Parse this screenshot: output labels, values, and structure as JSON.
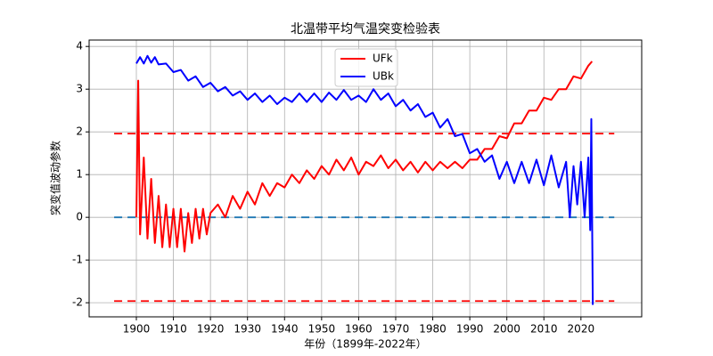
{
  "chart_data": {
    "type": "line",
    "title": "北温带平均气温突变检验表",
    "xlabel": "年份（1899年-2022年）",
    "ylabel": "突变值波动参数",
    "xlim": [
      1887.25,
      2036.4
    ],
    "xticks": [
      1900,
      1910,
      1920,
      1930,
      1940,
      1950,
      1960,
      1970,
      1980,
      1990,
      2000,
      2010,
      2020
    ],
    "ylim": [
      -2.33,
      4.15
    ],
    "yticks": [
      -2,
      -1,
      0,
      1,
      2,
      3,
      4
    ],
    "grid": true,
    "legend": "upper center",
    "reference_lines": [
      {
        "y": 1.96,
        "color": "#ff0000",
        "x": [
          1894,
          2029
        ]
      },
      {
        "y": 0,
        "color": "#1f77b4",
        "x": [
          1894,
          2029
        ]
      },
      {
        "y": -1.96,
        "color": "#ff0000",
        "x": [
          1894,
          2029
        ]
      }
    ],
    "series": [
      {
        "name": "UFk",
        "color": "#ff0000",
        "x": [
          1900,
          1900.5,
          1901,
          1902,
          1903,
          1904,
          1905,
          1906,
          1907,
          1908,
          1909,
          1910,
          1911,
          1912,
          1913,
          1914,
          1915,
          1916,
          1917,
          1918,
          1919,
          1920,
          1922,
          1924,
          1926,
          1928,
          1930,
          1932,
          1934,
          1936,
          1938,
          1940,
          1942,
          1944,
          1946,
          1948,
          1950,
          1952,
          1954,
          1956,
          1958,
          1960,
          1962,
          1964,
          1966,
          1968,
          1970,
          1972,
          1974,
          1976,
          1978,
          1980,
          1982,
          1984,
          1986,
          1988,
          1990,
          1992,
          1994,
          1996,
          1998,
          2000,
          2002,
          2004,
          2006,
          2008,
          2010,
          2012,
          2014,
          2016,
          2018,
          2020,
          2022,
          2023
        ],
        "values": [
          0,
          3.2,
          -0.4,
          1.4,
          -0.5,
          0.9,
          -0.6,
          0.5,
          -0.7,
          0.3,
          -0.7,
          0.2,
          -0.7,
          0.2,
          -0.8,
          0.1,
          -0.6,
          0.2,
          -0.5,
          0.2,
          -0.4,
          0.1,
          0.3,
          0.0,
          0.5,
          0.2,
          0.6,
          0.3,
          0.8,
          0.5,
          0.8,
          0.7,
          1.0,
          0.8,
          1.1,
          0.9,
          1.2,
          1.0,
          1.35,
          1.1,
          1.4,
          1.0,
          1.3,
          1.2,
          1.45,
          1.15,
          1.35,
          1.1,
          1.3,
          1.05,
          1.3,
          1.1,
          1.3,
          1.15,
          1.3,
          1.15,
          1.35,
          1.35,
          1.6,
          1.6,
          1.9,
          1.85,
          2.2,
          2.2,
          2.5,
          2.5,
          2.8,
          2.75,
          3.0,
          3.0,
          3.3,
          3.25,
          3.55,
          3.65
        ]
      },
      {
        "name": "UBk",
        "color": "#0000ff",
        "x": [
          1900,
          1901,
          1902,
          1903,
          1904,
          1905,
          1906,
          1908,
          1910,
          1912,
          1914,
          1916,
          1918,
          1920,
          1922,
          1924,
          1926,
          1928,
          1930,
          1932,
          1934,
          1936,
          1938,
          1940,
          1942,
          1944,
          1946,
          1948,
          1950,
          1952,
          1954,
          1956,
          1958,
          1960,
          1962,
          1964,
          1966,
          1968,
          1970,
          1972,
          1974,
          1976,
          1978,
          1980,
          1982,
          1984,
          1986,
          1988,
          1990,
          1992,
          1994,
          1996,
          1998,
          2000,
          2002,
          2004,
          2006,
          2008,
          2010,
          2012,
          2014,
          2016,
          2017,
          2018,
          2019,
          2020,
          2021,
          2022,
          2022.5,
          2022.8,
          2023.2
        ],
        "values": [
          3.6,
          3.75,
          3.6,
          3.78,
          3.62,
          3.75,
          3.58,
          3.6,
          3.4,
          3.45,
          3.2,
          3.3,
          3.05,
          3.15,
          2.95,
          3.05,
          2.85,
          2.95,
          2.75,
          2.9,
          2.7,
          2.85,
          2.65,
          2.8,
          2.7,
          2.9,
          2.7,
          2.9,
          2.7,
          2.92,
          2.75,
          2.98,
          2.75,
          2.85,
          2.7,
          3.0,
          2.75,
          2.9,
          2.6,
          2.75,
          2.5,
          2.65,
          2.35,
          2.45,
          2.1,
          2.3,
          1.9,
          1.95,
          1.5,
          1.6,
          1.3,
          1.45,
          0.9,
          1.3,
          0.8,
          1.3,
          0.8,
          1.35,
          0.75,
          1.45,
          0.7,
          1.3,
          0.0,
          1.2,
          0.3,
          1.3,
          0.0,
          1.4,
          -0.3,
          2.3,
          -2.05
        ]
      }
    ]
  }
}
